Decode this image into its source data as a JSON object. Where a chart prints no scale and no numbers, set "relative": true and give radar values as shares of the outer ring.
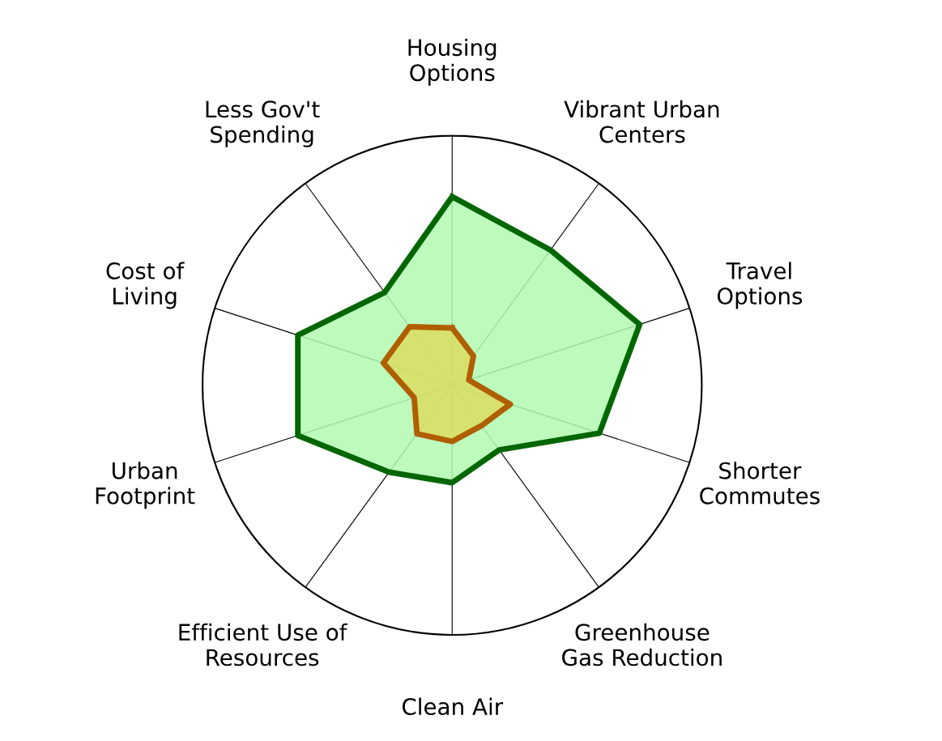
{
  "chart_data": {
    "type": "radar",
    "relative": true,
    "categories": [
      "Housing\nOptions",
      "Vibrant Urban\nCenters",
      "Travel\nOptions",
      "Shorter\nCommutes",
      "Greenhouse\nGas Reduction",
      "Clean Air",
      "Efficient Use of\nResources",
      "Urban\nFootprint",
      "Cost of\nLiving",
      "Less Gov't\nSpending"
    ],
    "series": [
      {
        "color": "#006600",
        "values": [
          0.756,
          0.67,
          0.79,
          0.62,
          0.32,
          0.39,
          0.43,
          0.65,
          0.65,
          0.46
        ]
      },
      {
        "color": "#b05f00",
        "values": [
          0.23,
          0.145,
          0.07,
          0.245,
          0.2,
          0.225,
          0.24,
          0.16,
          0.29,
          0.29
        ]
      }
    ]
  }
}
